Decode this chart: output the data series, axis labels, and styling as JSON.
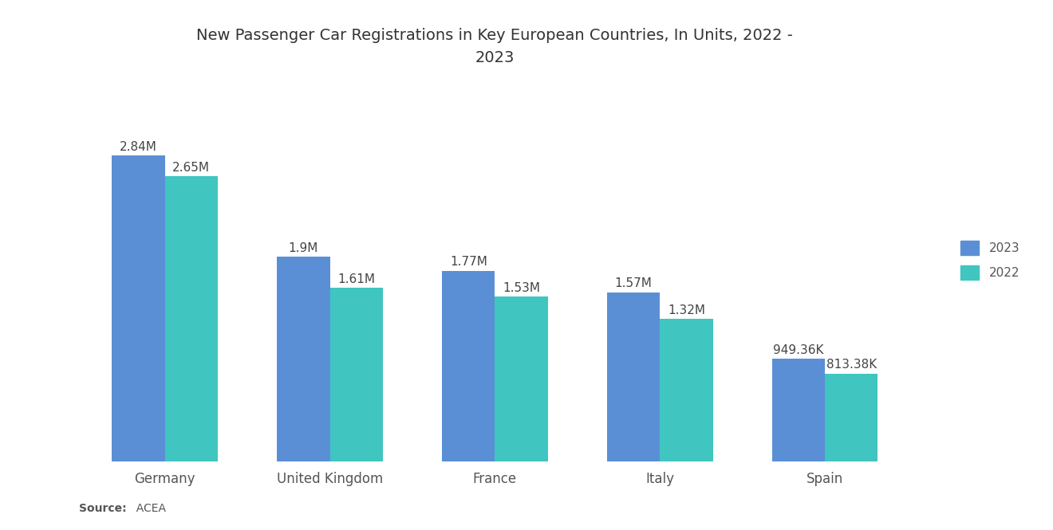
{
  "title": "New Passenger Car Registrations in Key European Countries, In Units, 2022 -\n2023",
  "categories": [
    "Germany",
    "United Kingdom",
    "France",
    "Italy",
    "Spain"
  ],
  "values_2023": [
    2840000,
    1900000,
    1770000,
    1570000,
    949360
  ],
  "values_2022": [
    2650000,
    1610000,
    1530000,
    1320000,
    813380
  ],
  "labels_2023": [
    "2.84M",
    "1.9M",
    "1.77M",
    "1.57M",
    "949.36K"
  ],
  "labels_2022": [
    "2.65M",
    "1.61M",
    "1.53M",
    "1.32M",
    "813.38K"
  ],
  "color_2023": "#5B8FD5",
  "color_2022": "#40C5C0",
  "background_color": "#ffffff",
  "ylim": [
    0,
    3400000
  ],
  "title_fontsize": 14,
  "label_fontsize": 11,
  "tick_fontsize": 12,
  "legend_labels": [
    "2023",
    "2022"
  ],
  "bar_width": 0.32,
  "source_bold": "Source:",
  "source_rest": "  ACEA"
}
